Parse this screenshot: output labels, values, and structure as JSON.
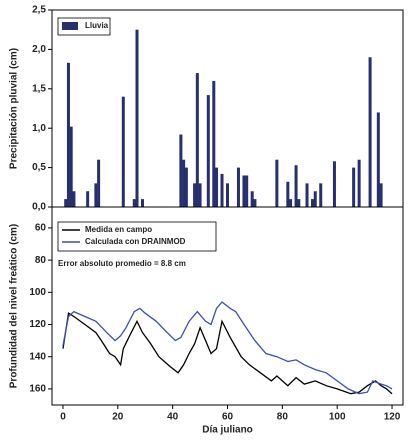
{
  "chart_data": [
    {
      "type": "bar",
      "ylabel": "Precipitación pluvial (cm)",
      "xlim": [
        -4,
        124
      ],
      "ylim": [
        0,
        2.5
      ],
      "yticks": [
        {
          "value": 0,
          "label": "0,0"
        },
        {
          "value": 0.5,
          "label": "0,5"
        },
        {
          "value": 1,
          "label": "1,0"
        },
        {
          "value": 1.5,
          "label": "1,5"
        },
        {
          "value": 2,
          "label": "2,0"
        },
        {
          "value": 2.5,
          "label": "2,5"
        }
      ],
      "series": [
        {
          "name": "Lluvia",
          "color": "#26306e",
          "x": [
            1,
            2,
            3,
            4,
            9,
            12,
            13,
            22,
            26,
            27,
            29,
            43,
            44,
            45,
            48,
            49,
            50,
            53,
            55,
            56,
            58,
            60,
            64,
            66,
            67,
            69,
            70,
            78,
            82,
            83,
            85,
            86,
            89,
            91,
            92,
            94,
            99,
            106,
            108,
            112,
            115,
            116
          ],
          "values": [
            0.1,
            1.83,
            1.02,
            0.2,
            0.2,
            0.3,
            0.6,
            1.4,
            0.1,
            2.25,
            0.1,
            0.92,
            0.6,
            0.5,
            0.3,
            1.7,
            0.3,
            1.42,
            1.6,
            0.5,
            0.42,
            0.3,
            0.5,
            0.4,
            0.4,
            0.2,
            0.1,
            0.6,
            0.32,
            0.1,
            0.53,
            0.1,
            0.3,
            0.1,
            0.2,
            0.3,
            0.58,
            0.5,
            0.6,
            1.9,
            1.2,
            0.3
          ]
        }
      ]
    },
    {
      "type": "line",
      "ylabel": "Profundidad del nivel freático (cm)",
      "xlabel": "Día juliano",
      "annotation": "Error absoluto promedio = 8.8 cm",
      "xlim": [
        -4,
        124
      ],
      "xticks": [
        0,
        20,
        40,
        60,
        80,
        100,
        120
      ],
      "ylim": [
        170,
        47
      ],
      "yticks": [
        60,
        80,
        100,
        120,
        140,
        160
      ],
      "series": [
        {
          "name": "Medida en campo",
          "color": "#000000",
          "x": [
            0,
            2,
            4,
            8,
            12,
            14,
            17,
            19,
            21,
            22,
            24,
            27,
            29,
            32,
            35,
            39,
            42,
            44,
            46,
            48,
            50,
            52,
            54,
            56,
            58,
            61,
            65,
            68,
            72,
            76,
            78,
            82,
            85,
            88,
            92,
            96,
            100,
            105,
            108,
            111,
            114,
            116,
            118,
            120
          ],
          "values": [
            135,
            113,
            115,
            120,
            125,
            130,
            138,
            140,
            145,
            135,
            128,
            118,
            125,
            132,
            140,
            146,
            150,
            145,
            138,
            132,
            122,
            130,
            138,
            135,
            118,
            128,
            140,
            145,
            150,
            155,
            152,
            158,
            153,
            157,
            155,
            158,
            160,
            163,
            162,
            158,
            155,
            158,
            160,
            163
          ]
        },
        {
          "name": "Calculada con DRAINMOD",
          "color": "#3a4fb0",
          "x": [
            0,
            2,
            4,
            8,
            12,
            16,
            19,
            21,
            23,
            26,
            28,
            30,
            34,
            38,
            41,
            43,
            46,
            49,
            52,
            54,
            56,
            58,
            61,
            63,
            66,
            70,
            74,
            78,
            82,
            85,
            88,
            92,
            96,
            100,
            104,
            108,
            111,
            113,
            116,
            118,
            120
          ],
          "values": [
            133,
            115,
            112,
            115,
            118,
            125,
            130,
            127,
            122,
            112,
            110,
            113,
            118,
            125,
            130,
            128,
            118,
            112,
            118,
            120,
            110,
            106,
            110,
            112,
            120,
            130,
            138,
            140,
            143,
            142,
            145,
            148,
            150,
            155,
            160,
            163,
            162,
            155,
            157,
            158,
            160
          ]
        }
      ]
    }
  ]
}
